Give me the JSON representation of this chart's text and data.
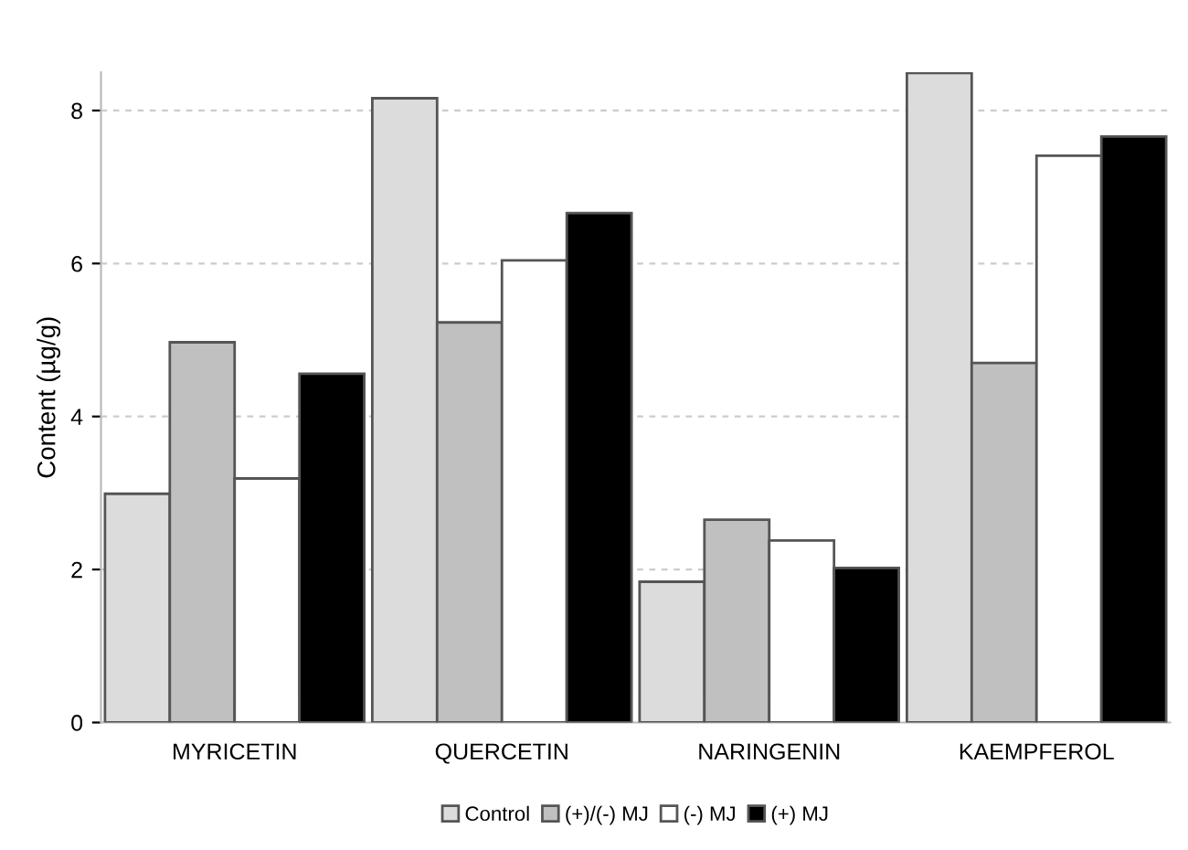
{
  "chart_data": {
    "type": "bar",
    "ylabel": "Content (µg/g)",
    "categories": [
      "MYRICETIN",
      "QUERCETIN",
      "NARINGENIN",
      "KAEMPFEROL"
    ],
    "series": [
      {
        "name": "Control",
        "color": "#dcdcdc",
        "values": [
          2.99,
          8.16,
          1.84,
          8.49
        ]
      },
      {
        "name": "(+)/(-) MJ",
        "color": "#c0c0c0",
        "values": [
          4.97,
          5.23,
          2.65,
          4.7
        ]
      },
      {
        "name": "(-) MJ",
        "color": "#ffffff",
        "values": [
          3.19,
          6.04,
          2.38,
          7.41
        ]
      },
      {
        "name": "(+) MJ",
        "color": "#000000",
        "values": [
          4.56,
          6.66,
          2.02,
          7.66
        ]
      }
    ],
    "ylim": [
      0,
      8.5
    ],
    "yticks": [
      0,
      2,
      4,
      6,
      8
    ],
    "grid": "y",
    "legend": "bottom"
  }
}
